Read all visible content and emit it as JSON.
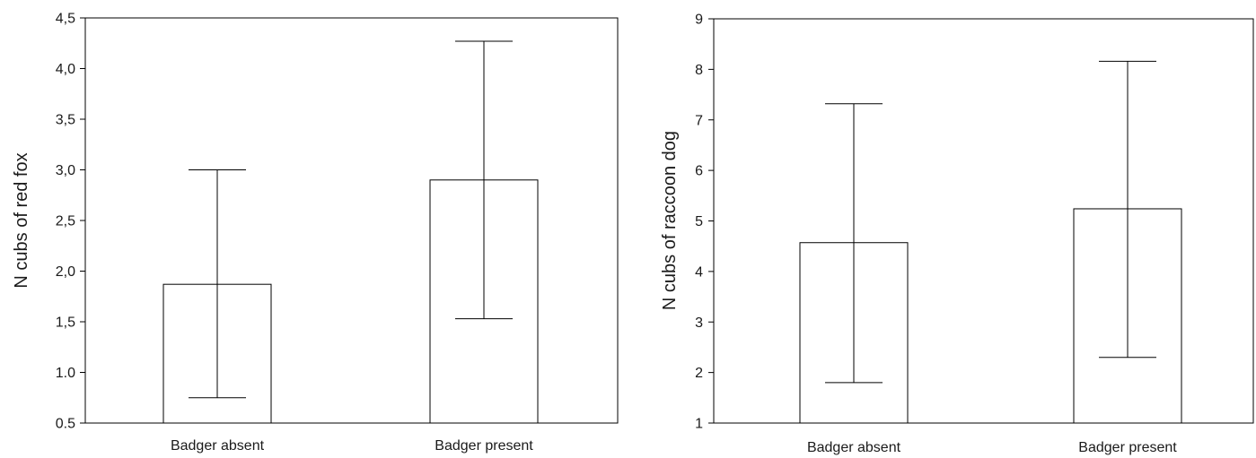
{
  "chart_data": [
    {
      "type": "bar",
      "ylabel": "N cubs of red fox",
      "categories": [
        "Badger absent",
        "Badger present"
      ],
      "values": [
        1.87,
        2.9
      ],
      "error_low": [
        0.75,
        1.53
      ],
      "error_high": [
        3.0,
        4.27
      ],
      "ylim": [
        0.5,
        4.5
      ],
      "yticks": [
        "0.5",
        "1.0",
        "1,5",
        "2,0",
        "2,5",
        "3,0",
        "3,5",
        "4,0",
        "4,5"
      ],
      "grid": false,
      "bar_color": "#ffffff",
      "line_color": "#000000"
    },
    {
      "type": "bar",
      "ylabel": "N cubs of raccoon dog",
      "categories": [
        "Badger absent",
        "Badger present"
      ],
      "values": [
        4.57,
        5.24
      ],
      "error_low": [
        1.8,
        2.3
      ],
      "error_high": [
        7.32,
        8.16
      ],
      "ylim": [
        1,
        9
      ],
      "yticks": [
        "1",
        "2",
        "3",
        "4",
        "5",
        "6",
        "7",
        "8",
        "9"
      ],
      "grid": false,
      "bar_color": "#ffffff",
      "line_color": "#000000"
    }
  ]
}
